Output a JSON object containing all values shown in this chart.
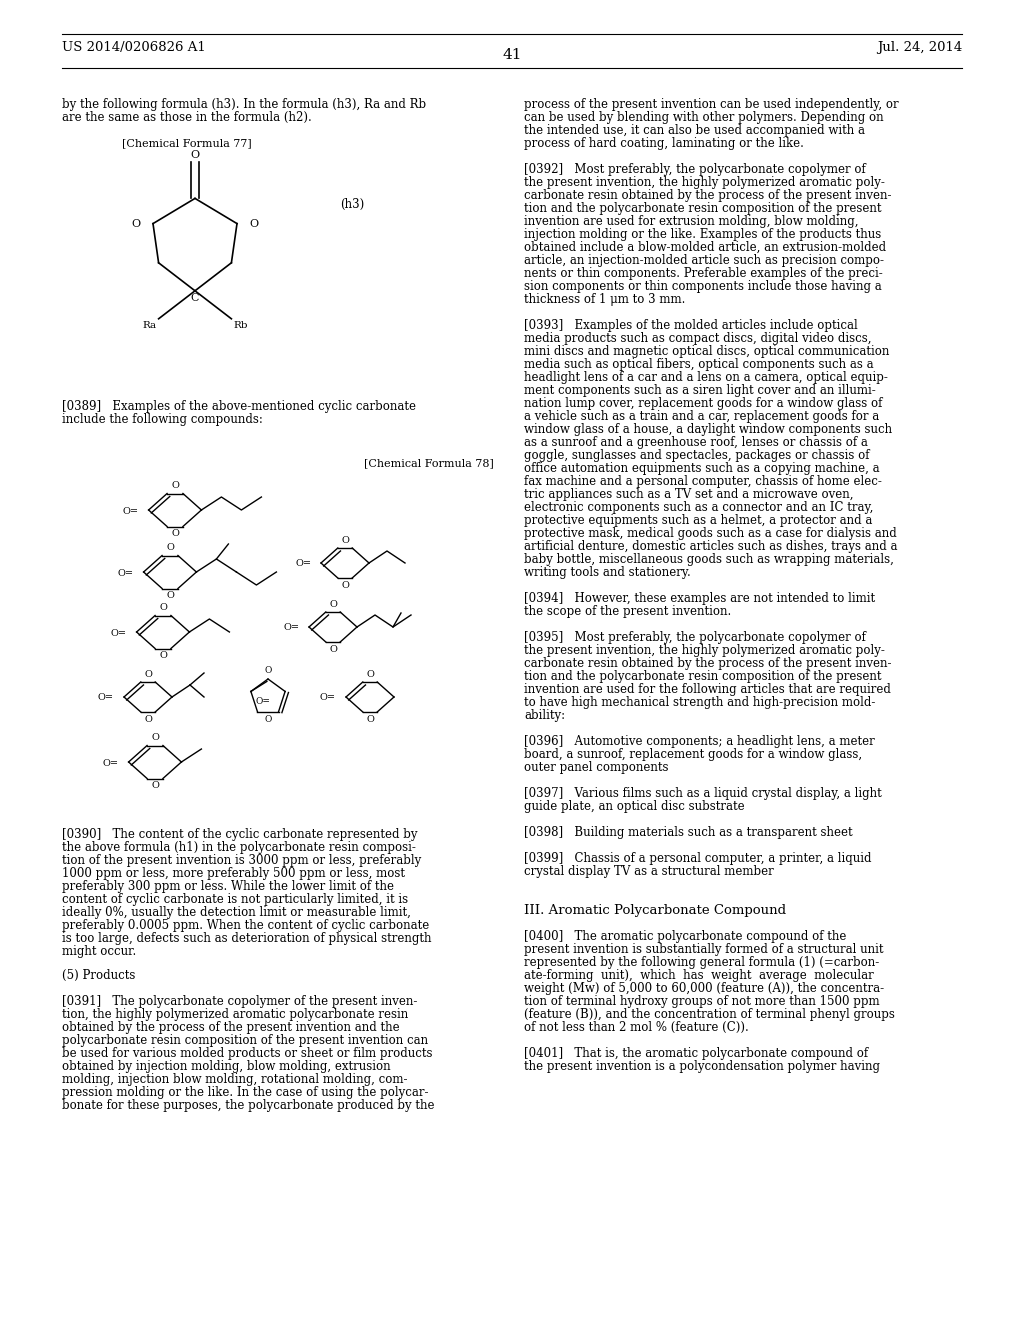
{
  "patent_left": "US 2014/0206826 A1",
  "patent_right": "Jul. 24, 2014",
  "page_number": "41",
  "bg": "#ffffff"
}
